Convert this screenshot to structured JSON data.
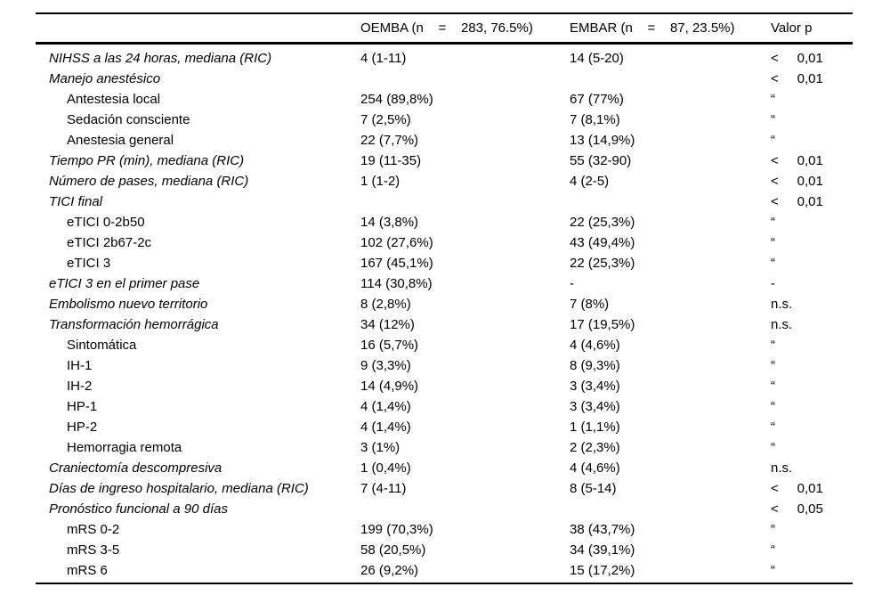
{
  "table": {
    "header": {
      "label": "",
      "oemba": "OEMBA (n    =    283, 76.5%)",
      "embar": "EMBAR (n    =    87, 23.5%)",
      "p": "Valor p"
    },
    "rows": [
      {
        "label": "NIHSS a las 24 horas, mediana (RIC)",
        "level": "main",
        "oemba": "4 (1-11)",
        "embar": "14 (5-20)",
        "p": "<     0,01"
      },
      {
        "label": "Manejo anestésico",
        "level": "main",
        "oemba": "",
        "embar": "",
        "p": "<     0,01"
      },
      {
        "label": "Antestesia local",
        "level": "sub",
        "oemba": "254 (89,8%)",
        "embar": "67 (77%)",
        "p": "“"
      },
      {
        "label": "Sedación consciente",
        "level": "sub",
        "oemba": "7 (2,5%)",
        "embar": "7 (8,1%)",
        "p": "“"
      },
      {
        "label": "Anestesia general",
        "level": "sub",
        "oemba": "22 (7,7%)",
        "embar": "13 (14,9%)",
        "p": "“"
      },
      {
        "label": "Tiempo PR (min), mediana (RIC)",
        "level": "main",
        "oemba": "19 (11-35)",
        "embar": "55 (32-90)",
        "p": "<     0,01"
      },
      {
        "label": "Número de pases, mediana (RIC)",
        "level": "main",
        "oemba": "1 (1-2)",
        "embar": "4 (2-5)",
        "p": "<     0,01"
      },
      {
        "label": "TICI final",
        "level": "main",
        "oemba": "",
        "embar": "",
        "p": "<     0,01"
      },
      {
        "label": "eTICI 0-2b50",
        "level": "sub",
        "oemba": "14 (3,8%)",
        "embar": "22 (25,3%)",
        "p": "“"
      },
      {
        "label": "eTICI 2b67-2c",
        "level": "sub",
        "oemba": "102 (27,6%)",
        "embar": "43 (49,4%)",
        "p": "“"
      },
      {
        "label": "eTICI 3",
        "level": "sub",
        "oemba": "167 (45,1%)",
        "embar": "22 (25,3%)",
        "p": "“"
      },
      {
        "label": "eTICI 3 en el primer pase",
        "level": "main",
        "oemba": "114 (30,8%)",
        "embar": "-",
        "p": "-"
      },
      {
        "label": "Embolismo nuevo territorio",
        "level": "main",
        "oemba": "8 (2,8%)",
        "embar": "7 (8%)",
        "p": "n.s."
      },
      {
        "label": "Transformación hemorrágica",
        "level": "main",
        "oemba": "34 (12%)",
        "embar": "17 (19,5%)",
        "p": "n.s."
      },
      {
        "label": "Sintomática",
        "level": "sub",
        "oemba": "16 (5,7%)",
        "embar": "4 (4,6%)",
        "p": "“"
      },
      {
        "label": "IH-1",
        "level": "sub",
        "oemba": "9 (3,3%)",
        "embar": "8 (9,3%)",
        "p": "“"
      },
      {
        "label": "IH-2",
        "level": "sub",
        "oemba": "14 (4,9%)",
        "embar": "3 (3,4%)",
        "p": "“"
      },
      {
        "label": "HP-1",
        "level": "sub",
        "oemba": "4 (1,4%)",
        "embar": "3 (3,4%)",
        "p": "“"
      },
      {
        "label": "HP-2",
        "level": "sub",
        "oemba": "4 (1,4%)",
        "embar": "1 (1,1%)",
        "p": "“"
      },
      {
        "label": "Hemorragia remota",
        "level": "sub",
        "oemba": "3 (1%)",
        "embar": "2 (2,3%)",
        "p": "“"
      },
      {
        "label": "Craniectomía descompresiva",
        "level": "main",
        "oemba": "1 (0,4%)",
        "embar": "4 (4,6%)",
        "p": "n.s."
      },
      {
        "label": "Días de ingreso hospitalario, mediana (RIC)",
        "level": "main",
        "oemba": "7 (4-11)",
        "embar": "8 (5-14)",
        "p": "<     0,01"
      },
      {
        "label": "Pronóstico funcional a 90 días",
        "level": "main",
        "oemba": "",
        "embar": "",
        "p": "<     0,05"
      },
      {
        "label": "mRS 0-2",
        "level": "sub",
        "oemba": "199 (70,3%)",
        "embar": "38 (43,7%)",
        "p": "“"
      },
      {
        "label": "mRS 3-5",
        "level": "sub",
        "oemba": "58 (20,5%)",
        "embar": "34 (39,1%)",
        "p": "“"
      },
      {
        "label": "mRS 6",
        "level": "sub",
        "oemba": "26 (9,2%)",
        "embar": "15 (17,2%)",
        "p": "“"
      }
    ]
  }
}
